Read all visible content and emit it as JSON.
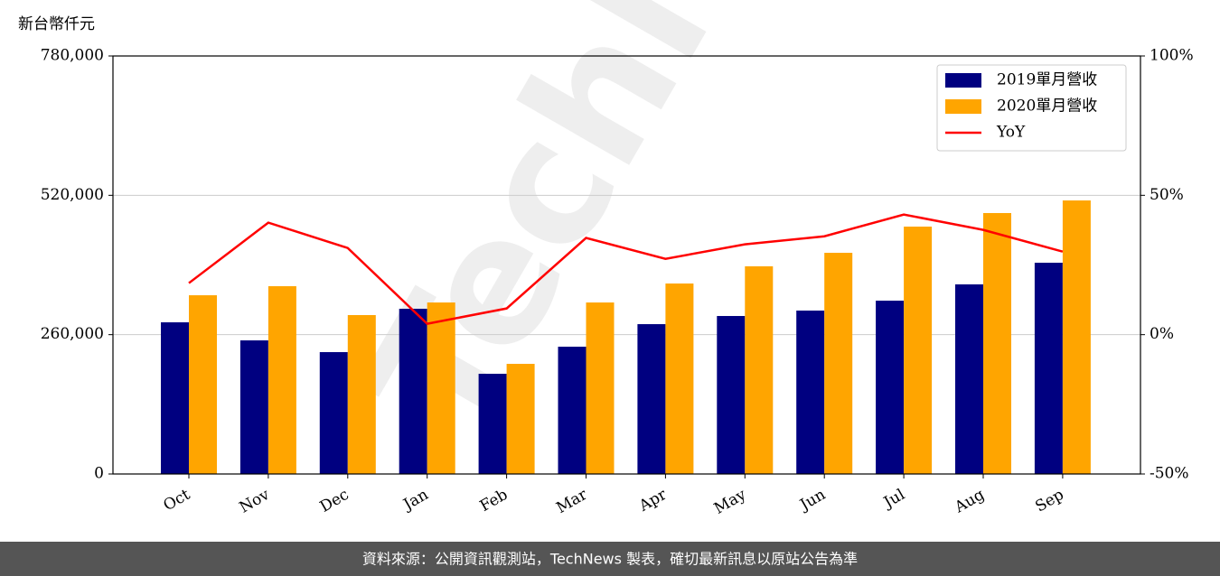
{
  "chart_data": {
    "type": "bar",
    "y_axis_unit": "新台幣仟元",
    "watermark": "TechNews",
    "footer": "資料來源：公開資訊觀測站，TechNews 製表，確切最新訊息以原站公告為準",
    "categories": [
      "Oct",
      "Nov",
      "Dec",
      "Jan",
      "Feb",
      "Mar",
      "Apr",
      "May",
      "Jun",
      "Jul",
      "Aug",
      "Sep"
    ],
    "series": [
      {
        "name": "2019單月營收",
        "type": "bar",
        "color": "#000080",
        "values": [
          283000,
          249300,
          227400,
          308300,
          187000,
          237500,
          279600,
          294800,
          304900,
          323400,
          353800,
          394200
        ]
      },
      {
        "name": "2020單月營收",
        "type": "bar",
        "color": "#ffa500",
        "values": [
          333500,
          350400,
          296500,
          320000,
          205500,
          320000,
          355400,
          387500,
          412700,
          461600,
          486900,
          510400
        ]
      },
      {
        "name": "YoY",
        "type": "line",
        "axis": "y2",
        "color": "#ff0000",
        "values": [
          18.5,
          40.2,
          31.1,
          3.9,
          9.4,
          34.7,
          27.2,
          32.4,
          35.3,
          43.1,
          37.6,
          29.8
        ]
      }
    ],
    "ylim": [
      0,
      780000
    ],
    "yticks": [
      0,
      {
        "value": 260000,
        "label": "260,000"
      },
      {
        "value": 520000,
        "label": "520,000"
      },
      {
        "value": 780000,
        "label": "780,000"
      }
    ],
    "y2lim": [
      -50,
      100
    ],
    "y2ticks": [
      {
        "value": -50,
        "label": "-50%"
      },
      {
        "value": 0,
        "label": "0%"
      },
      {
        "value": 50,
        "label": "50%"
      },
      {
        "value": 100,
        "label": "100%"
      }
    ],
    "grid": true,
    "legend": "upper right"
  }
}
